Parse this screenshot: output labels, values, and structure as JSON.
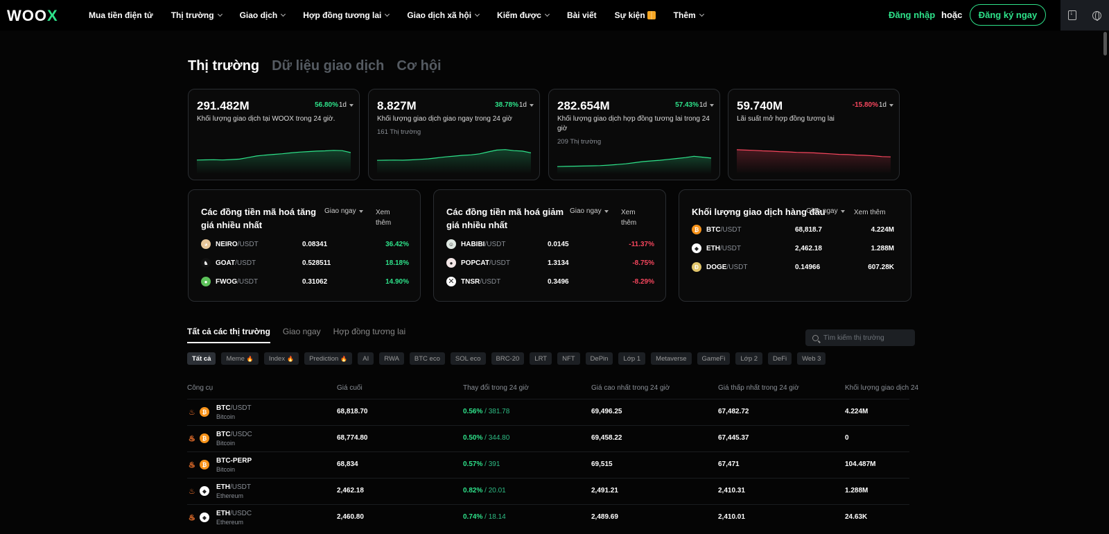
{
  "nav": {
    "logo": "WOO",
    "logo_x": "X",
    "items": [
      {
        "label": "Mua tiền điện tử",
        "dropdown": false
      },
      {
        "label": "Thị trường",
        "dropdown": true
      },
      {
        "label": "Giao dịch",
        "dropdown": true
      },
      {
        "label": "Hợp đồng tương lai",
        "dropdown": true
      },
      {
        "label": "Giao dịch xã hội",
        "dropdown": true
      },
      {
        "label": "Kiếm được",
        "dropdown": true
      },
      {
        "label": "Bài viết",
        "dropdown": false
      },
      {
        "label": "Sự kiện",
        "dropdown": false
      },
      {
        "label": "Thêm",
        "dropdown": true
      }
    ],
    "login": "Đăng nhập",
    "or": "hoặc",
    "signup": "Đăng ký ngay",
    "icons": [
      "download-icon",
      "globe-icon"
    ]
  },
  "page_tabs": [
    "Thị trường",
    "Dữ liệu giao dịch",
    "Cơ hội"
  ],
  "stats": [
    {
      "value": "291.482M",
      "change": "56.80%",
      "direction": "up",
      "period": "1d",
      "desc": "Khối lượng giao dịch tại WOOX trong 24 giờ.",
      "sub": "",
      "color": "#2ee28a"
    },
    {
      "value": "8.827M",
      "change": "38.78%",
      "direction": "up",
      "period": "1d",
      "desc": "Khối lượng giao dịch giao ngay trong 24 giờ",
      "sub": "161 Thị trường",
      "color": "#2ee28a"
    },
    {
      "value": "282.654M",
      "change": "57.43%",
      "direction": "up",
      "period": "1d",
      "desc": "Khối lượng giao dịch hợp đồng tương lai trong 24 giờ",
      "sub": "209 Thị trường",
      "color": "#2ee28a"
    },
    {
      "value": "59.740M",
      "change": "-15.80%",
      "direction": "down",
      "period": "1d",
      "desc": "Lãi suất mở hợp đồng tương lai",
      "sub": "",
      "color": "#f6465d"
    }
  ],
  "gainers": {
    "title": "Các đồng tiền mã hoá tăng giá nhiều nhất",
    "filter": "Giao ngay",
    "more": "Xem thêm",
    "rows": [
      {
        "base": "NEIRO",
        "quote": "/USDT",
        "price": "0.08341",
        "change": "36.42%",
        "icon": "neiro-icon",
        "bg": "#e8c79a",
        "glyph": "◕"
      },
      {
        "base": "GOAT",
        "quote": "/USDT",
        "price": "0.528511",
        "change": "18.18%",
        "icon": "goat-icon",
        "bg": "#111",
        "glyph": "♞"
      },
      {
        "base": "FWOG",
        "quote": "/USDT",
        "price": "0.31062",
        "change": "14.90%",
        "icon": "fwog-icon",
        "bg": "#5dc25a",
        "glyph": "●"
      }
    ]
  },
  "losers": {
    "title": "Các đồng tiền mã hoá giảm giá nhiều nhất",
    "filter": "Giao ngay",
    "more": "Xem thêm",
    "rows": [
      {
        "base": "HABIBI",
        "quote": "/USDT",
        "price": "0.0145",
        "change": "-11.37%",
        "icon": "habibi-icon",
        "bg": "#dfe8e2",
        "glyph": "☺"
      },
      {
        "base": "POPCAT",
        "quote": "/USDT",
        "price": "1.3134",
        "change": "-8.75%",
        "icon": "popcat-icon",
        "bg": "#f2e6e6",
        "glyph": "●"
      },
      {
        "base": "TNSR",
        "quote": "/USDT",
        "price": "0.3496",
        "change": "-8.29%",
        "icon": "tnsr-icon",
        "bg": "#ffffff",
        "glyph": "⨉"
      }
    ]
  },
  "top_volume": {
    "title": "Khối lượng giao dịch hàng đầu",
    "filter": "Giao ngay",
    "more": "Xem thêm",
    "rows": [
      {
        "base": "BTC",
        "quote": "/USDT",
        "price": "68,818.7",
        "volume": "4.224M",
        "icon": "btc-icon",
        "bg": "#f7931a",
        "glyph": "₿"
      },
      {
        "base": "ETH",
        "quote": "/USDT",
        "price": "2,462.18",
        "volume": "1.288M",
        "icon": "eth-icon",
        "bg": "#ffffff",
        "glyph": "◆"
      },
      {
        "base": "DOGE",
        "quote": "/USDT",
        "price": "0.14966",
        "volume": "607.28K",
        "icon": "doge-icon",
        "bg": "#e1c56a",
        "glyph": "Ð"
      }
    ]
  },
  "market_tabs": [
    "Tất cả các thị trường",
    "Giao ngay",
    "Hợp đồng tương lai"
  ],
  "search": {
    "placeholder": "Tìm kiếm thị trường"
  },
  "chips": [
    {
      "label": "Tất cả",
      "hot": false
    },
    {
      "label": "Meme",
      "hot": true
    },
    {
      "label": "Index",
      "hot": true
    },
    {
      "label": "Prediction",
      "hot": true
    },
    {
      "label": "AI",
      "hot": false
    },
    {
      "label": "RWA",
      "hot": false
    },
    {
      "label": "BTC eco",
      "hot": false
    },
    {
      "label": "SOL eco",
      "hot": false
    },
    {
      "label": "BRC-20",
      "hot": false
    },
    {
      "label": "LRT",
      "hot": false
    },
    {
      "label": "NFT",
      "hot": false
    },
    {
      "label": "DePin",
      "hot": false
    },
    {
      "label": "Lớp 1",
      "hot": false
    },
    {
      "label": "Metaverse",
      "hot": false
    },
    {
      "label": "GameFi",
      "hot": false
    },
    {
      "label": "Lớp 2",
      "hot": false
    },
    {
      "label": "DeFi",
      "hot": false
    },
    {
      "label": "Web 3",
      "hot": false
    }
  ],
  "table": {
    "headers": [
      "Công cụ",
      "Giá cuối",
      "Thay đổi trong 24 giờ",
      "Giá cao nhất trong 24 giờ",
      "Giá thấp nhất trong 24 giờ",
      "Khối lượng giao dịch 24"
    ],
    "rows": [
      {
        "base": "BTC",
        "quote": "/USDT",
        "name": "Bitcoin",
        "last": "68,818.70",
        "change_pct": "0.56%",
        "change_abs": "381.78",
        "high": "69,496.25",
        "low": "67,482.72",
        "volume": "4.224M",
        "fire": "hot",
        "icon": "btc-icon",
        "bg": "#f7931a",
        "glyph": "₿"
      },
      {
        "base": "BTC",
        "quote": "/USDC",
        "name": "Bitcoin",
        "last": "68,774.80",
        "change_pct": "0.50%",
        "change_abs": "344.80",
        "high": "69,458.22",
        "low": "67,445.37",
        "volume": "0",
        "fire": "outline",
        "icon": "btc-icon",
        "bg": "#f7931a",
        "glyph": "₿"
      },
      {
        "base": "BTC-PERP",
        "quote": "",
        "name": "Bitcoin",
        "last": "68,834",
        "change_pct": "0.57%",
        "change_abs": "391",
        "high": "69,515",
        "low": "67,471",
        "volume": "104.487M",
        "fire": "outline",
        "icon": "btc-icon",
        "bg": "#f7931a",
        "glyph": "₿"
      },
      {
        "base": "ETH",
        "quote": "/USDT",
        "name": "Ethereum",
        "last": "2,462.18",
        "change_pct": "0.82%",
        "change_abs": "20.01",
        "high": "2,491.21",
        "low": "2,410.31",
        "volume": "1.288M",
        "fire": "hot",
        "icon": "eth-icon",
        "bg": "#ffffff",
        "glyph": "◆"
      },
      {
        "base": "ETH",
        "quote": "/USDC",
        "name": "Ethereum",
        "last": "2,460.80",
        "change_pct": "0.74%",
        "change_abs": "18.14",
        "high": "2,489.69",
        "low": "2,410.01",
        "volume": "24.63K",
        "fire": "outline",
        "icon": "eth-icon",
        "bg": "#ffffff",
        "glyph": "◆"
      }
    ]
  }
}
